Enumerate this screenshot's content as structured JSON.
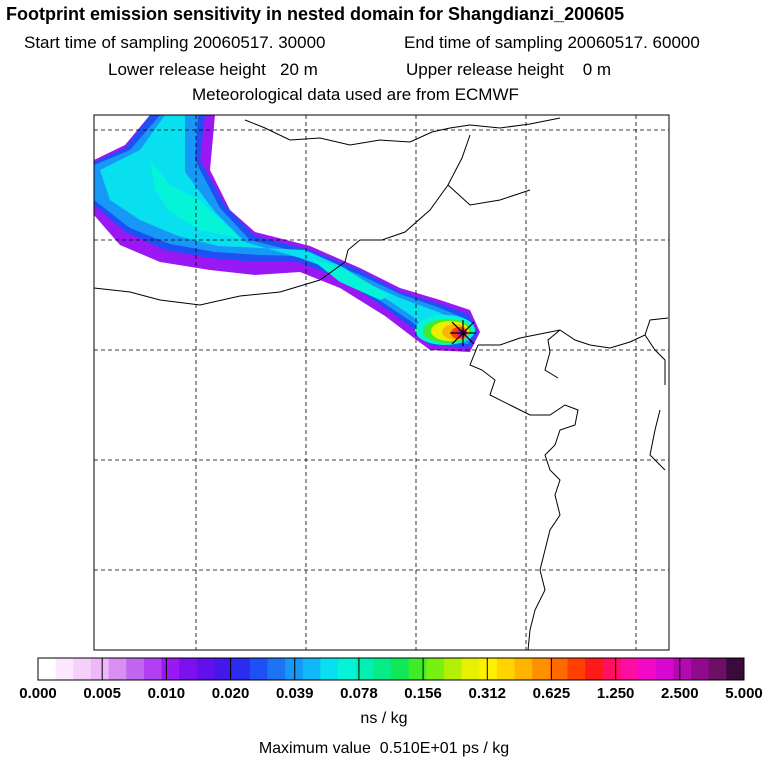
{
  "title": "Footprint emission sensitivity in nested domain for Shangdianzi_200605",
  "header": {
    "start_time": "Start time of sampling 20060517. 30000",
    "end_time": "End time of sampling 20060517. 60000",
    "lower_release": "Lower release height   20 m",
    "upper_release": "Upper release height    0 m",
    "met_source": "Meteorological data used are from ECMWF"
  },
  "colorbar": {
    "tick_labels": [
      "0.000",
      "0.005",
      "0.010",
      "0.020",
      "0.039",
      "0.078",
      "0.156",
      "0.312",
      "0.625",
      "1.250",
      "2.500",
      "5.000"
    ],
    "colors": [
      "#ffffff",
      "#fbe8ff",
      "#f4d0fb",
      "#eeb8f8",
      "#d98ef2",
      "#c366ef",
      "#b140f2",
      "#9a18f4",
      "#7d10ee",
      "#6010ea",
      "#4418ea",
      "#2c2cf0",
      "#1f50f3",
      "#1c74f5",
      "#1698f7",
      "#10b8f8",
      "#08e0ef",
      "#05f4d8",
      "#02f0b0",
      "#06ec86",
      "#10e858",
      "#40ec2a",
      "#78f012",
      "#b4f006",
      "#e8f200",
      "#fff000",
      "#ffd400",
      "#ffb400",
      "#ff9000",
      "#ff6a00",
      "#ff4000",
      "#ff1a1a",
      "#ff1060",
      "#ff0ca0",
      "#f408c8",
      "#d808d0",
      "#b408b0",
      "#8e0c8c",
      "#6c1066",
      "#3a0a3a"
    ],
    "units": "ns / kg",
    "max_value": "Maximum value  0.510E+01 ps / kg"
  }
}
